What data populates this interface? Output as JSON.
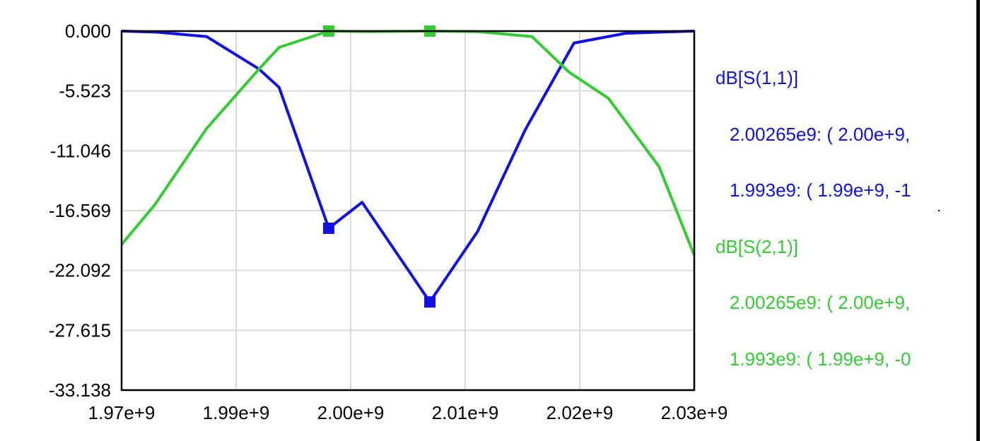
{
  "colors": {
    "s11": "#1111e6",
    "s21": "#33cc33",
    "grid": "#d9d9d9",
    "axis": "#000000"
  },
  "chart_data": {
    "type": "line",
    "title": "",
    "xlabel": "",
    "ylabel": "",
    "xlim": [
      1970000000.0,
      2030000000.0
    ],
    "ylim": [
      -33.138,
      0.0
    ],
    "grid": true,
    "legend_position": "right",
    "x_ticks": [
      1970000000.0,
      1982000000.0,
      1994000000.0,
      2006000000.0,
      2018000000.0,
      2030000000.0
    ],
    "x_tick_labels": [
      "1.97e+9",
      "1.99e+9",
      "2.00e+9",
      "2.01e+9",
      "2.02e+9",
      "2.03e+9"
    ],
    "y_ticks": [
      0.0,
      -5.523,
      -11.046,
      -16.569,
      -22.092,
      -27.615,
      -33.138
    ],
    "y_tick_labels": [
      "0.000",
      "-5.523",
      "-11.046",
      "-16.569",
      "-22.092",
      "-27.615",
      "-33.138"
    ],
    "series": [
      {
        "name": "dB[S(1,1)]",
        "color": "#1111e6",
        "x": [
          1970000000.0,
          1973700000.0,
          1978900000.0,
          1984400000.0,
          1986500000.0,
          1991700000.0,
          1995200000.0,
          2002300000.0,
          2007300000.0,
          2012300000.0,
          2017400000.0,
          2022800000.0,
          2026300000.0,
          2030000000.0
        ],
        "y": [
          0.0,
          -0.1,
          -0.5,
          -3.5,
          -5.2,
          -18.2,
          -15.8,
          -25.0,
          -18.5,
          -9.1,
          -1.1,
          -0.2,
          -0.1,
          0.0
        ],
        "markers": [
          {
            "x": 1991700000.0,
            "y": -18.2
          },
          {
            "x": 2002300000.0,
            "y": -25.0
          }
        ]
      },
      {
        "name": "dB[S(2,1)]",
        "color": "#33cc33",
        "x": [
          1970000000.0,
          1973500000.0,
          1978900000.0,
          1984400000.0,
          1986500000.0,
          1991700000.0,
          1996200000.0,
          2002300000.0,
          2007300000.0,
          2013000000.0,
          2016900000.0,
          2021000000.0,
          2026300000.0,
          2030000000.0
        ],
        "y": [
          -19.7,
          -16.0,
          -9.0,
          -3.5,
          -1.5,
          0.0,
          -0.05,
          0.0,
          -0.05,
          -0.5,
          -3.8,
          -6.2,
          -12.5,
          -20.7
        ],
        "markers": [
          {
            "x": 1991700000.0,
            "y": 0.0
          },
          {
            "x": 2002300000.0,
            "y": 0.0
          }
        ]
      }
    ],
    "annotations": [
      {
        "series": "dB[S(1,1)]",
        "lines": [
          "2.00265e9: ( 2.00e+9,",
          "1.993e9: ( 1.99e+9, -1"
        ]
      },
      {
        "series": "dB[S(2,1)]",
        "lines": [
          "2.00265e9: ( 2.00e+9,",
          "1.993e9: ( 1.99e+9, -0"
        ]
      }
    ]
  }
}
